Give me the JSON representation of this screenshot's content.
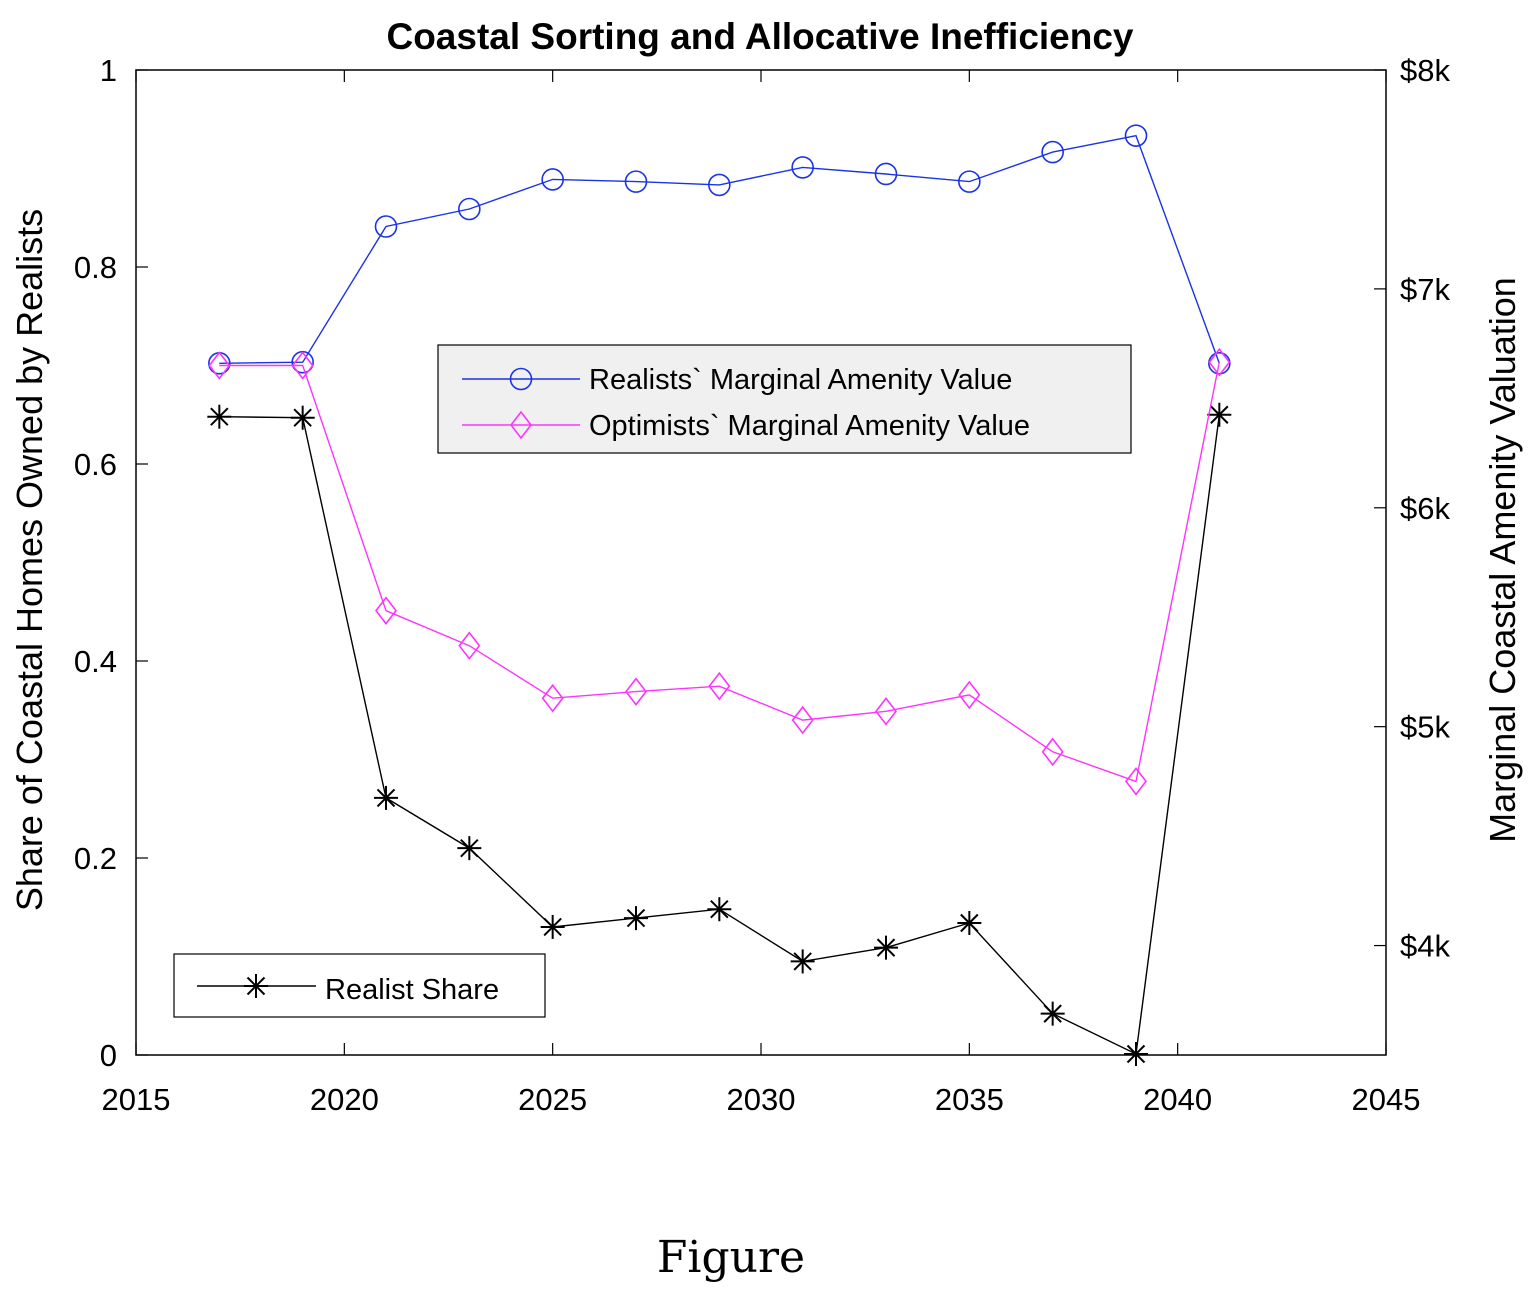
{
  "chart_data": {
    "type": "line",
    "title": "Coastal Sorting and Allocative Inefficiency",
    "caption": "Figure",
    "xlabel": "",
    "ylabel_left": "Share of Coastal Homes Owned by Realists",
    "ylabel_right": "Marginal Coastal Amenity Valuation",
    "xlim": [
      2015,
      2045
    ],
    "ylim_left": [
      0,
      1
    ],
    "ylim_right": [
      3500,
      8000
    ],
    "x_ticks": [
      2015,
      2020,
      2025,
      2030,
      2035,
      2040,
      2045
    ],
    "y_ticks_left": [
      {
        "value": 0,
        "label": "0"
      },
      {
        "value": 0.2,
        "label": "0.2"
      },
      {
        "value": 0.4,
        "label": "0.4"
      },
      {
        "value": 0.6,
        "label": "0.6"
      },
      {
        "value": 0.8,
        "label": "0.8"
      },
      {
        "value": 1,
        "label": "1"
      }
    ],
    "y_ticks_right": [
      {
        "value": 4000,
        "label": "$4k"
      },
      {
        "value": 5000,
        "label": "$5k"
      },
      {
        "value": 6000,
        "label": "$6k"
      },
      {
        "value": 7000,
        "label": "$7k"
      },
      {
        "value": 8000,
        "label": "$8k"
      }
    ],
    "x": [
      2017,
      2019,
      2021,
      2023,
      2025,
      2027,
      2029,
      2031,
      2033,
      2035,
      2037,
      2039,
      2041
    ],
    "series": [
      {
        "name": "Realist Share",
        "axis": "left",
        "marker": "asterisk",
        "color": "#000000",
        "values": [
          0.648,
          0.647,
          0.261,
          0.21,
          0.13,
          0.139,
          0.148,
          0.095,
          0.109,
          0.134,
          0.042,
          0.001,
          0.65
        ]
      },
      {
        "name": "Realists` Marginal Amenity Value",
        "axis": "right",
        "marker": "circle",
        "color": "#1a33e6",
        "values": [
          6660,
          6665,
          7285,
          7365,
          7500,
          7490,
          7475,
          7555,
          7525,
          7490,
          7625,
          7700,
          6660
        ]
      },
      {
        "name": "Optimists` Marginal Amenity Value",
        "axis": "right",
        "marker": "diamond",
        "color": "#ff33ff",
        "values": [
          6650,
          6650,
          5530,
          5370,
          5130,
          5160,
          5185,
          5030,
          5070,
          5145,
          4885,
          4750,
          6665
        ]
      }
    ],
    "legends": [
      {
        "entries": [
          "Realists` Marginal Amenity Value",
          "Optimists` Marginal Amenity Value"
        ],
        "placement": "center-top"
      },
      {
        "entries": [
          "Realist Share"
        ],
        "placement": "bottom-left"
      }
    ],
    "grid": false
  }
}
